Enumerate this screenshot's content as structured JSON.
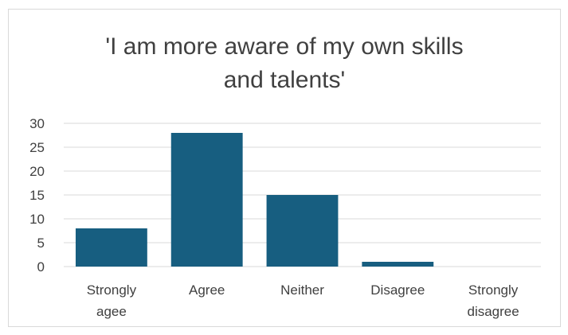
{
  "chart_data": {
    "type": "bar",
    "title_lines": [
      "'I am more aware of my own skills",
      "and talents'"
    ],
    "categories": [
      [
        "Strongly",
        "agee"
      ],
      [
        "Agree"
      ],
      [
        "Neither"
      ],
      [
        "Disagree"
      ],
      [
        "Strongly",
        "disagree"
      ]
    ],
    "values": [
      8,
      28,
      15,
      1,
      0
    ],
    "y_ticks": [
      0,
      5,
      10,
      15,
      20,
      25,
      30
    ],
    "ylim": [
      0,
      30
    ],
    "bar_color": "#175e80",
    "grid": true,
    "legend": "none"
  }
}
